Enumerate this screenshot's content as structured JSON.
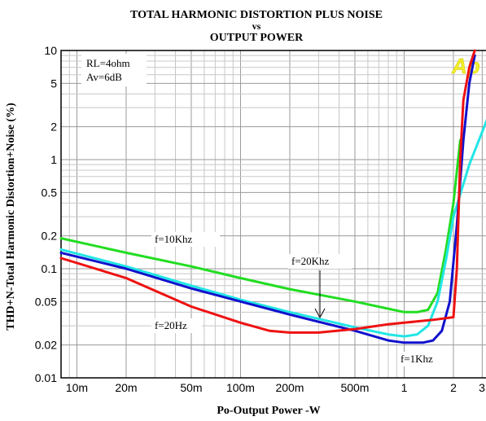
{
  "chart_data": {
    "type": "line",
    "title_line1": "TOTAL HARMONIC DISTORTION PLUS NOISE",
    "title_line2": "vs",
    "title_line3": "OUTPUT POWER",
    "xlabel": "Po-Output Power -W",
    "ylabel": "THD+N-Total Harmonic Distortion+Noise (%)",
    "x_scale": "log",
    "y_scale": "log",
    "xlim": [
      0.008,
      3.2
    ],
    "ylim": [
      0.01,
      10
    ],
    "grid": true,
    "x_ticks": [
      {
        "value": 0.01,
        "label": "10m"
      },
      {
        "value": 0.02,
        "label": "20m"
      },
      {
        "value": 0.05,
        "label": "50m"
      },
      {
        "value": 0.1,
        "label": "100m"
      },
      {
        "value": 0.2,
        "label": "200m"
      },
      {
        "value": 0.5,
        "label": "500m"
      },
      {
        "value": 1,
        "label": "1"
      },
      {
        "value": 2,
        "label": "2"
      },
      {
        "value": 3,
        "label": "3"
      }
    ],
    "y_ticks": [
      {
        "value": 0.01,
        "label": "0.01"
      },
      {
        "value": 0.02,
        "label": "0.02"
      },
      {
        "value": 0.05,
        "label": "0.05"
      },
      {
        "value": 0.1,
        "label": "0.1"
      },
      {
        "value": 0.2,
        "label": "0.2"
      },
      {
        "value": 0.5,
        "label": "0.5"
      },
      {
        "value": 1,
        "label": "1"
      },
      {
        "value": 2,
        "label": "2"
      },
      {
        "value": 5,
        "label": "5"
      },
      {
        "value": 10,
        "label": "10"
      }
    ],
    "conditions": [
      "RL=4ohm",
      "Av=6dB"
    ],
    "series": [
      {
        "name": "f=10Khz",
        "color": "#22dd22",
        "x": [
          0.008,
          0.02,
          0.05,
          0.1,
          0.2,
          0.5,
          0.8,
          1.0,
          1.2,
          1.4,
          1.6,
          1.8,
          2.0,
          2.2
        ],
        "y": [
          0.19,
          0.14,
          0.105,
          0.082,
          0.065,
          0.05,
          0.043,
          0.04,
          0.04,
          0.042,
          0.06,
          0.15,
          0.4,
          1.5
        ]
      },
      {
        "name": "f=20Khz",
        "color": "#22e5e5",
        "x": [
          0.008,
          0.02,
          0.05,
          0.1,
          0.2,
          0.5,
          0.8,
          1.0,
          1.2,
          1.4,
          1.6,
          1.8,
          2.0,
          2.5,
          3.0,
          3.2
        ],
        "y": [
          0.15,
          0.105,
          0.07,
          0.052,
          0.04,
          0.029,
          0.025,
          0.024,
          0.025,
          0.03,
          0.05,
          0.12,
          0.3,
          0.9,
          1.8,
          2.3
        ]
      },
      {
        "name": "f=1Khz",
        "color": "#1111cc",
        "x": [
          0.008,
          0.02,
          0.05,
          0.1,
          0.2,
          0.5,
          0.8,
          1.0,
          1.3,
          1.5,
          1.7,
          1.9,
          2.1,
          2.3,
          2.5,
          2.7
        ],
        "y": [
          0.14,
          0.1,
          0.066,
          0.05,
          0.038,
          0.027,
          0.022,
          0.021,
          0.021,
          0.022,
          0.027,
          0.05,
          0.25,
          1.5,
          5,
          9
        ]
      },
      {
        "name": "f=20Hz",
        "color": "#ee1111",
        "x": [
          0.008,
          0.02,
          0.05,
          0.1,
          0.15,
          0.2,
          0.3,
          0.5,
          0.8,
          1.0,
          1.5,
          2.0,
          2.1,
          2.2,
          2.3,
          2.5,
          2.7
        ],
        "y": [
          0.125,
          0.082,
          0.045,
          0.032,
          0.027,
          0.026,
          0.026,
          0.028,
          0.031,
          0.032,
          0.034,
          0.036,
          0.1,
          1.0,
          3.5,
          7,
          10
        ]
      }
    ],
    "annotations": [
      {
        "text": "f=10Khz",
        "series": "f=10Khz"
      },
      {
        "text": "f=20Khz",
        "series": "f=20Khz"
      },
      {
        "text": "f=1Khz",
        "series": "f=1Khz"
      },
      {
        "text": "f=20Hz",
        "series": "f=20Hz"
      }
    ],
    "watermark": "Ap"
  }
}
